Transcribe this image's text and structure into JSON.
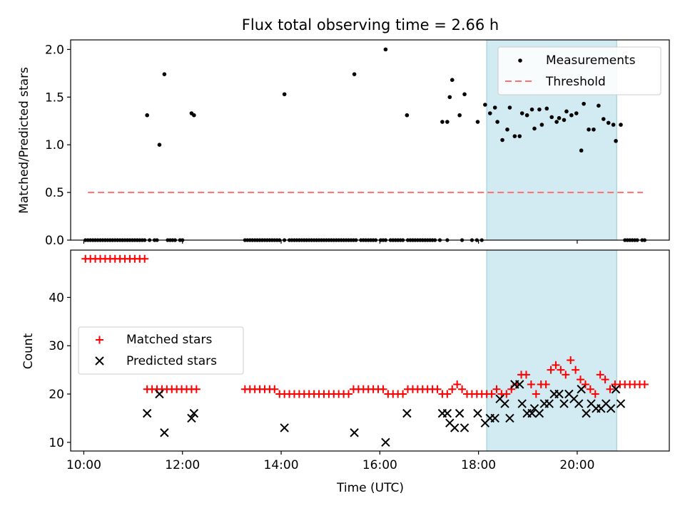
{
  "title": "Flux total observing time = 2.66 h",
  "colors": {
    "measurement": "#000000",
    "threshold": "#ff6f6f",
    "matched": "#ff0000",
    "predicted": "#000000",
    "span_fill": "#add8e6"
  },
  "chart_data": [
    {
      "type": "scatter",
      "ylabel": "Matched/Predicted stars",
      "xlim": [
        "09:44",
        "21:52"
      ],
      "ylim": [
        0,
        2.1
      ],
      "yticks": [
        0.0,
        0.5,
        1.0,
        1.5,
        2.0
      ],
      "ytick_labels": [
        "0.0",
        "0.5",
        "1.0",
        "1.5",
        "2.0"
      ],
      "legend_position": "upper right",
      "legend": {
        "measurements": "Measurements",
        "threshold": "Threshold"
      },
      "highlight_span": [
        "18:10",
        "20:48"
      ],
      "threshold": {
        "value": 0.5,
        "x_start": "10:05",
        "x_end": "21:20"
      },
      "zero_points": [
        "10:02",
        "10:05",
        "10:08",
        "10:11",
        "10:14",
        "10:17",
        "10:20",
        "10:23",
        "10:26",
        "10:29",
        "10:32",
        "10:35",
        "10:38",
        "10:41",
        "10:44",
        "10:47",
        "10:50",
        "10:53",
        "10:56",
        "10:59",
        "11:02",
        "11:05",
        "11:08",
        "11:11",
        "11:14",
        "11:20",
        "11:26",
        "11:29",
        "11:42",
        "11:45",
        "11:48",
        "11:51",
        "11:57",
        "12:00",
        "13:16",
        "13:19",
        "13:22",
        "13:25",
        "13:28",
        "13:31",
        "13:34",
        "13:37",
        "13:40",
        "13:43",
        "13:46",
        "13:49",
        "13:52",
        "13:55",
        "13:58",
        "14:04",
        "14:10",
        "14:13",
        "14:16",
        "14:19",
        "14:22",
        "14:25",
        "14:28",
        "14:31",
        "14:34",
        "14:37",
        "14:40",
        "14:43",
        "14:46",
        "14:49",
        "14:52",
        "14:55",
        "14:58",
        "15:01",
        "15:04",
        "15:07",
        "15:10",
        "15:13",
        "15:16",
        "15:19",
        "15:22",
        "15:25",
        "15:28",
        "15:31",
        "15:37",
        "15:40",
        "15:43",
        "15:46",
        "15:49",
        "15:52",
        "15:55",
        "16:01",
        "16:04",
        "16:07",
        "16:13",
        "16:16",
        "16:19",
        "16:22",
        "16:25",
        "16:28",
        "16:34",
        "16:37",
        "16:40",
        "16:43",
        "16:46",
        "16:49",
        "16:52",
        "16:55",
        "16:58",
        "17:01",
        "17:04",
        "17:07",
        "17:13",
        "17:22",
        "17:40",
        "17:52",
        "17:58",
        "18:04",
        "20:58",
        "21:01",
        "21:04",
        "21:07",
        "21:10",
        "21:13",
        "21:19",
        "21:22"
      ],
      "points": [
        [
          "11:17",
          1.31
        ],
        [
          "11:32",
          1.0
        ],
        [
          "11:38",
          1.74
        ],
        [
          "12:11",
          1.33
        ],
        [
          "12:14",
          1.31
        ],
        [
          "14:04",
          1.53
        ],
        [
          "15:29",
          1.74
        ],
        [
          "16:07",
          2.0
        ],
        [
          "16:33",
          1.31
        ],
        [
          "17:16",
          1.24
        ],
        [
          "17:22",
          1.24
        ],
        [
          "17:25",
          1.5
        ],
        [
          "17:28",
          1.68
        ],
        [
          "17:37",
          1.31
        ],
        [
          "17:43",
          1.53
        ],
        [
          "17:59",
          1.24
        ],
        [
          "18:08",
          1.42
        ],
        [
          "18:14",
          1.33
        ],
        [
          "18:20",
          1.39
        ],
        [
          "18:23",
          1.24
        ],
        [
          "18:29",
          1.05
        ],
        [
          "18:35",
          1.16
        ],
        [
          "18:38",
          1.39
        ],
        [
          "18:44",
          1.09
        ],
        [
          "18:50",
          1.09
        ],
        [
          "18:53",
          1.33
        ],
        [
          "18:59",
          1.31
        ],
        [
          "19:05",
          1.37
        ],
        [
          "19:08",
          1.17
        ],
        [
          "19:14",
          1.37
        ],
        [
          "19:17",
          1.21
        ],
        [
          "19:23",
          1.38
        ],
        [
          "19:29",
          1.29
        ],
        [
          "19:35",
          1.24
        ],
        [
          "19:38",
          1.28
        ],
        [
          "19:44",
          1.26
        ],
        [
          "19:47",
          1.35
        ],
        [
          "19:53",
          1.31
        ],
        [
          "19:59",
          1.33
        ],
        [
          "20:05",
          0.94
        ],
        [
          "20:08",
          1.43
        ],
        [
          "20:14",
          1.16
        ],
        [
          "20:20",
          1.16
        ],
        [
          "20:26",
          1.41
        ],
        [
          "20:32",
          1.27
        ],
        [
          "20:38",
          1.23
        ],
        [
          "20:44",
          1.21
        ],
        [
          "20:47",
          1.04
        ],
        [
          "20:53",
          1.21
        ]
      ]
    },
    {
      "type": "scatter",
      "ylabel": "Count",
      "xlabel": "Time (UTC)",
      "xlim": [
        "09:44",
        "21:52"
      ],
      "ylim": [
        8.2,
        49.8
      ],
      "yticks": [
        10,
        20,
        30,
        40
      ],
      "ytick_labels": [
        "10",
        "20",
        "30",
        "40"
      ],
      "xticks": [
        "10:00",
        "12:00",
        "14:00",
        "16:00",
        "18:00",
        "20:00"
      ],
      "xtick_labels": [
        "10:00",
        "12:00",
        "14:00",
        "16:00",
        "18:00",
        "20:00"
      ],
      "legend_position": "center left",
      "legend": {
        "matched": "Matched stars",
        "predicted": "Predicted stars"
      },
      "highlight_span": [
        "18:10",
        "20:48"
      ],
      "matched": [
        [
          "10:02",
          48
        ],
        [
          "10:08",
          48
        ],
        [
          "10:14",
          48
        ],
        [
          "10:20",
          48
        ],
        [
          "10:26",
          48
        ],
        [
          "10:32",
          48
        ],
        [
          "10:38",
          48
        ],
        [
          "10:44",
          48
        ],
        [
          "10:50",
          48
        ],
        [
          "10:56",
          48
        ],
        [
          "11:02",
          48
        ],
        [
          "11:08",
          48
        ],
        [
          "11:14",
          48
        ],
        [
          "11:17",
          21
        ],
        [
          "11:23",
          21
        ],
        [
          "11:29",
          21
        ],
        [
          "11:35",
          21
        ],
        [
          "11:41",
          21
        ],
        [
          "11:47",
          21
        ],
        [
          "11:53",
          21
        ],
        [
          "11:59",
          21
        ],
        [
          "12:05",
          21
        ],
        [
          "12:11",
          21
        ],
        [
          "12:17",
          21
        ],
        [
          "13:16",
          21
        ],
        [
          "13:22",
          21
        ],
        [
          "13:28",
          21
        ],
        [
          "13:34",
          21
        ],
        [
          "13:40",
          21
        ],
        [
          "13:46",
          21
        ],
        [
          "13:52",
          21
        ],
        [
          "13:58",
          20
        ],
        [
          "14:04",
          20
        ],
        [
          "14:10",
          20
        ],
        [
          "14:16",
          20
        ],
        [
          "14:22",
          20
        ],
        [
          "14:28",
          20
        ],
        [
          "14:34",
          20
        ],
        [
          "14:40",
          20
        ],
        [
          "14:46",
          20
        ],
        [
          "14:52",
          20
        ],
        [
          "14:58",
          20
        ],
        [
          "15:04",
          20
        ],
        [
          "15:10",
          20
        ],
        [
          "15:16",
          20
        ],
        [
          "15:22",
          20
        ],
        [
          "15:28",
          21
        ],
        [
          "15:34",
          21
        ],
        [
          "15:40",
          21
        ],
        [
          "15:46",
          21
        ],
        [
          "15:52",
          21
        ],
        [
          "15:58",
          21
        ],
        [
          "16:04",
          21
        ],
        [
          "16:10",
          20
        ],
        [
          "16:16",
          20
        ],
        [
          "16:22",
          20
        ],
        [
          "16:28",
          20
        ],
        [
          "16:34",
          21
        ],
        [
          "16:40",
          21
        ],
        [
          "16:46",
          21
        ],
        [
          "16:52",
          21
        ],
        [
          "16:58",
          21
        ],
        [
          "17:04",
          21
        ],
        [
          "17:10",
          21
        ],
        [
          "17:16",
          20
        ],
        [
          "17:22",
          20
        ],
        [
          "17:28",
          21
        ],
        [
          "17:34",
          22
        ],
        [
          "17:40",
          21
        ],
        [
          "17:46",
          20
        ],
        [
          "17:52",
          20
        ],
        [
          "17:58",
          20
        ],
        [
          "18:04",
          20
        ],
        [
          "18:10",
          20
        ],
        [
          "18:16",
          20
        ],
        [
          "18:22",
          21
        ],
        [
          "18:28",
          20
        ],
        [
          "18:34",
          20
        ],
        [
          "18:40",
          21
        ],
        [
          "18:46",
          22
        ],
        [
          "18:52",
          24
        ],
        [
          "18:58",
          24
        ],
        [
          "19:04",
          22
        ],
        [
          "19:10",
          20
        ],
        [
          "19:16",
          22
        ],
        [
          "19:22",
          22
        ],
        [
          "19:28",
          25
        ],
        [
          "19:34",
          26
        ],
        [
          "19:40",
          25
        ],
        [
          "19:46",
          24
        ],
        [
          "19:52",
          27
        ],
        [
          "19:58",
          25
        ],
        [
          "20:04",
          23
        ],
        [
          "20:10",
          22
        ],
        [
          "20:16",
          21
        ],
        [
          "20:22",
          20
        ],
        [
          "20:28",
          24
        ],
        [
          "20:34",
          23
        ],
        [
          "20:40",
          21
        ],
        [
          "20:46",
          22
        ],
        [
          "20:52",
          22
        ],
        [
          "20:58",
          22
        ],
        [
          "21:04",
          22
        ],
        [
          "21:10",
          22
        ],
        [
          "21:16",
          22
        ],
        [
          "21:22",
          22
        ]
      ],
      "predicted": [
        [
          "11:17",
          16
        ],
        [
          "11:32",
          20
        ],
        [
          "11:38",
          12
        ],
        [
          "12:11",
          15
        ],
        [
          "12:14",
          16
        ],
        [
          "14:04",
          13
        ],
        [
          "15:29",
          12
        ],
        [
          "16:07",
          10
        ],
        [
          "16:33",
          16
        ],
        [
          "17:16",
          16
        ],
        [
          "17:22",
          16
        ],
        [
          "17:25",
          14
        ],
        [
          "17:31",
          13
        ],
        [
          "17:37",
          16
        ],
        [
          "17:43",
          13
        ],
        [
          "17:59",
          16
        ],
        [
          "18:08",
          14
        ],
        [
          "18:14",
          15
        ],
        [
          "18:20",
          15
        ],
        [
          "18:26",
          19
        ],
        [
          "18:32",
          18
        ],
        [
          "18:38",
          15
        ],
        [
          "18:44",
          22
        ],
        [
          "18:50",
          22
        ],
        [
          "18:53",
          18
        ],
        [
          "18:59",
          16
        ],
        [
          "19:05",
          16
        ],
        [
          "19:08",
          17
        ],
        [
          "19:14",
          16
        ],
        [
          "19:20",
          18
        ],
        [
          "19:26",
          18
        ],
        [
          "19:32",
          20
        ],
        [
          "19:38",
          20
        ],
        [
          "19:44",
          18
        ],
        [
          "19:50",
          20
        ],
        [
          "19:56",
          19
        ],
        [
          "20:02",
          18
        ],
        [
          "20:05",
          21
        ],
        [
          "20:11",
          16
        ],
        [
          "20:17",
          18
        ],
        [
          "20:23",
          17
        ],
        [
          "20:29",
          17
        ],
        [
          "20:35",
          18
        ],
        [
          "20:41",
          17
        ],
        [
          "20:47",
          21
        ],
        [
          "20:53",
          18
        ]
      ]
    }
  ]
}
